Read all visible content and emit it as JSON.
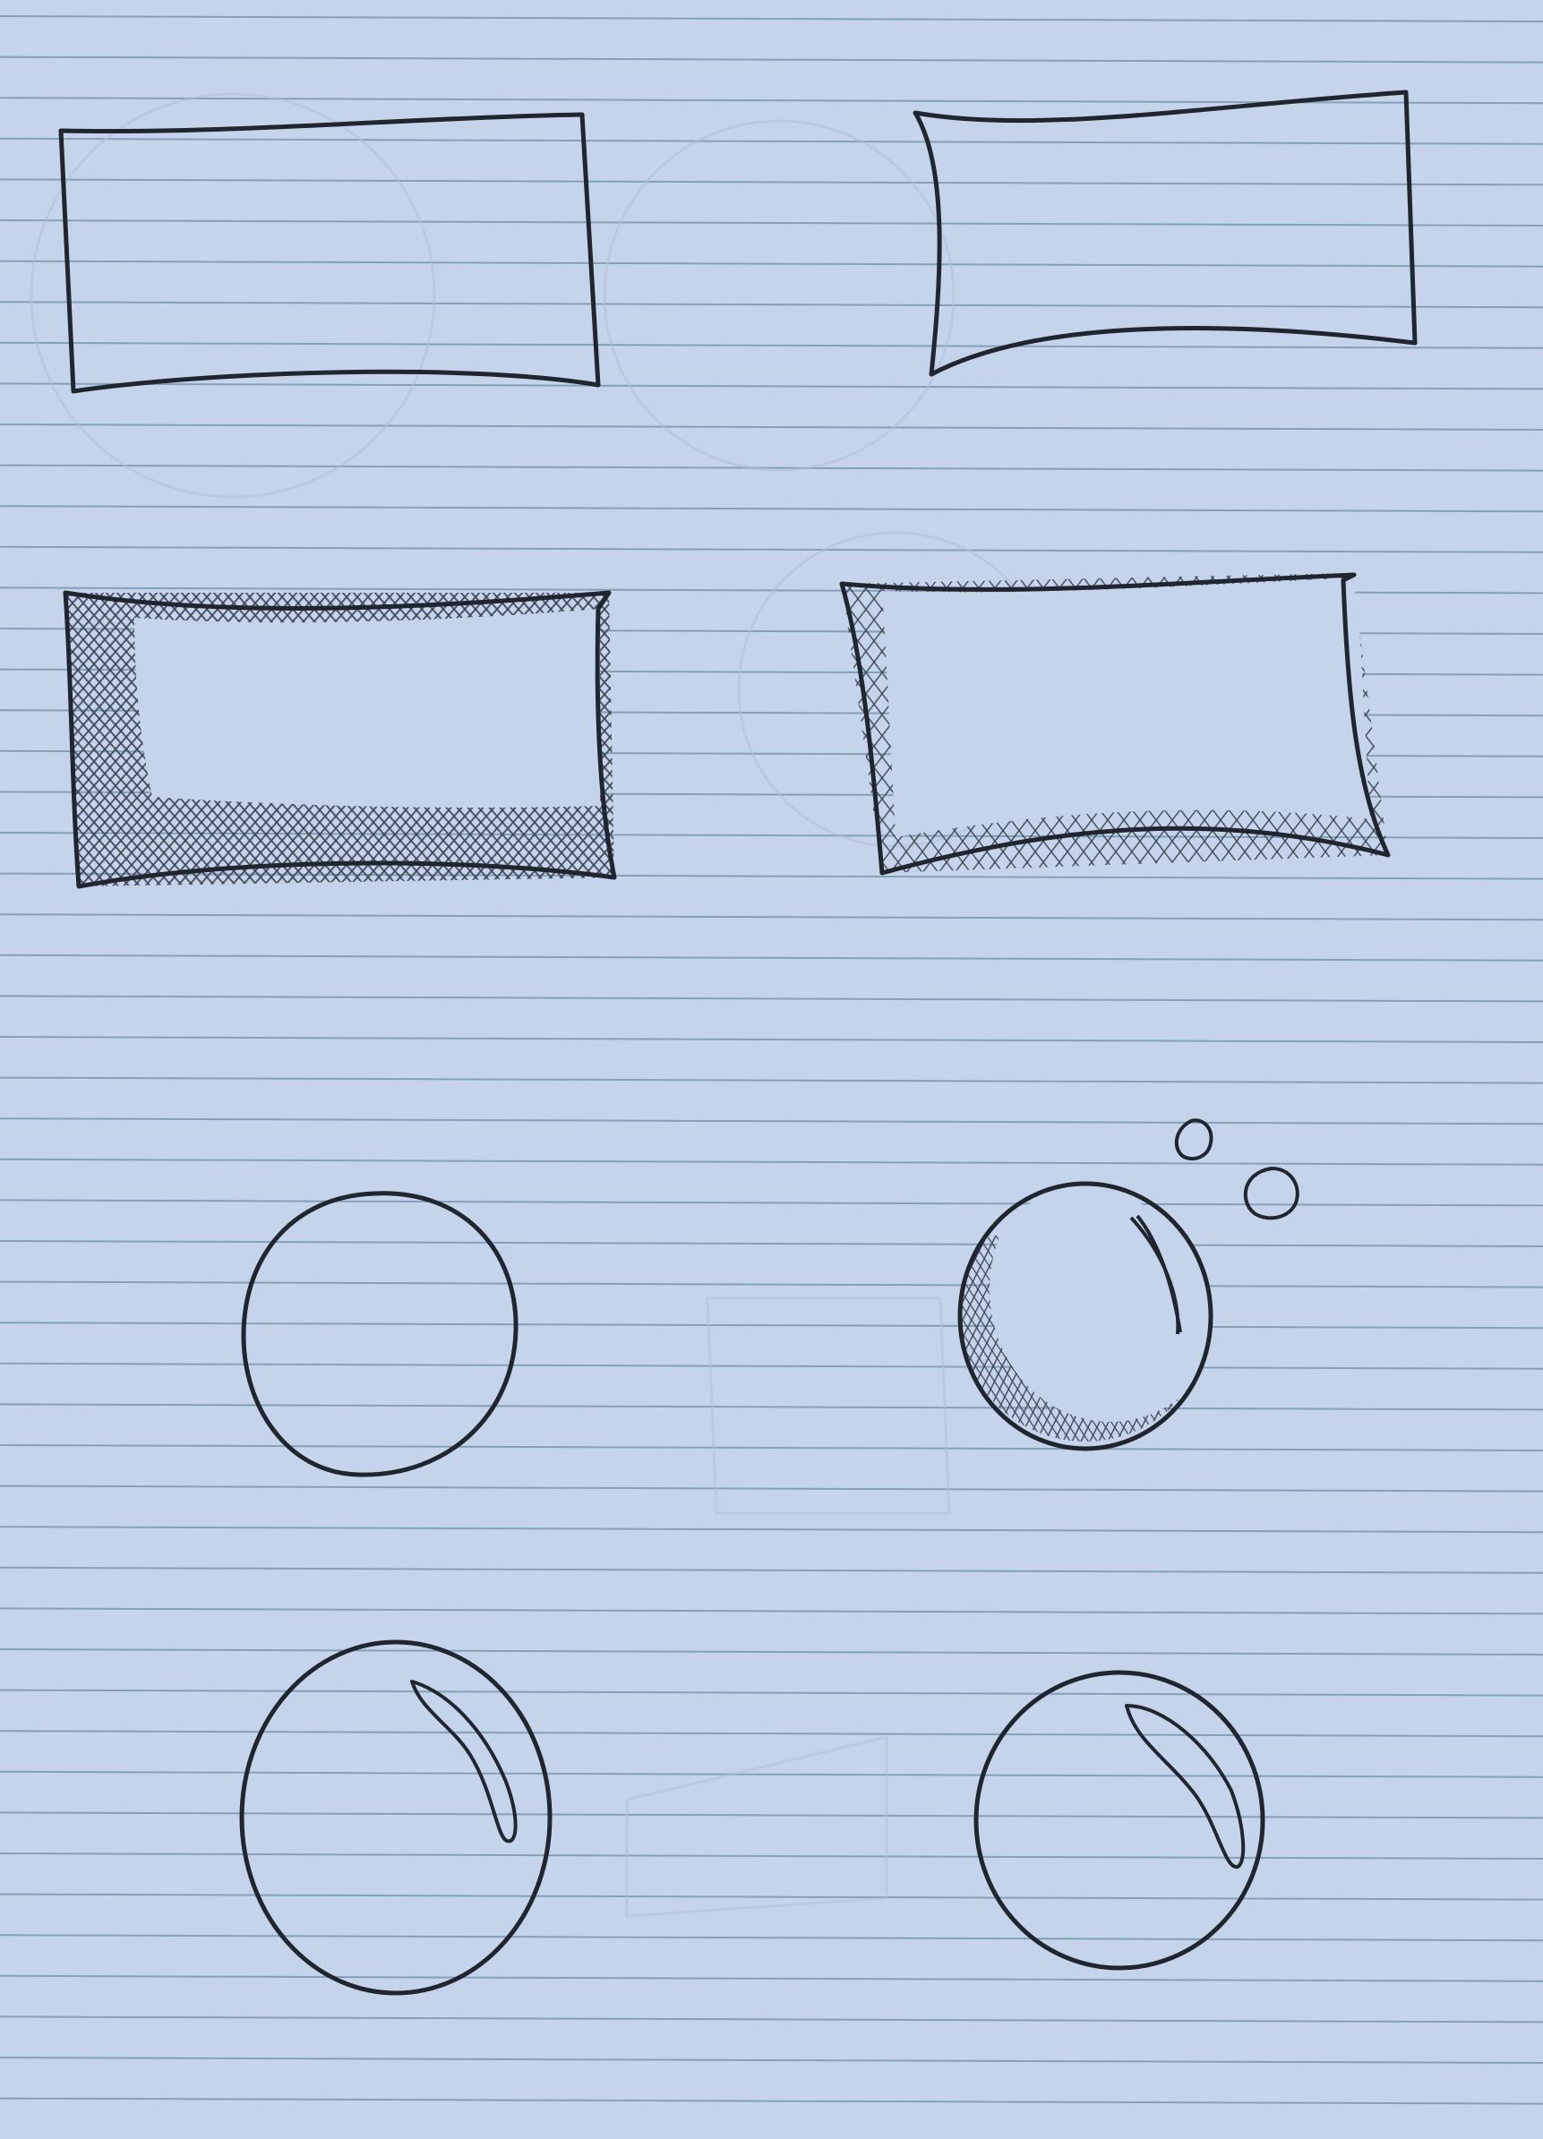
{
  "colors": {
    "paper": "#c6d4eb",
    "ruled_line": "#6f8fa8",
    "ink": "#1f2630",
    "ink_light": "#3a4250",
    "ghost": "#b0c0da"
  },
  "shapes": [
    {
      "kind": "rectangle",
      "shading": "none"
    },
    {
      "kind": "rectangle",
      "shading": "none"
    },
    {
      "kind": "rectangle",
      "shading": "heavy-crosshatch"
    },
    {
      "kind": "rectangle",
      "shading": "light-crosshatch"
    },
    {
      "kind": "circle",
      "shading": "none"
    },
    {
      "kind": "bubble",
      "shading": "crosshatch-with-highlight"
    },
    {
      "kind": "bubble",
      "shading": "highlight"
    },
    {
      "kind": "bubble",
      "shading": "highlight"
    }
  ]
}
